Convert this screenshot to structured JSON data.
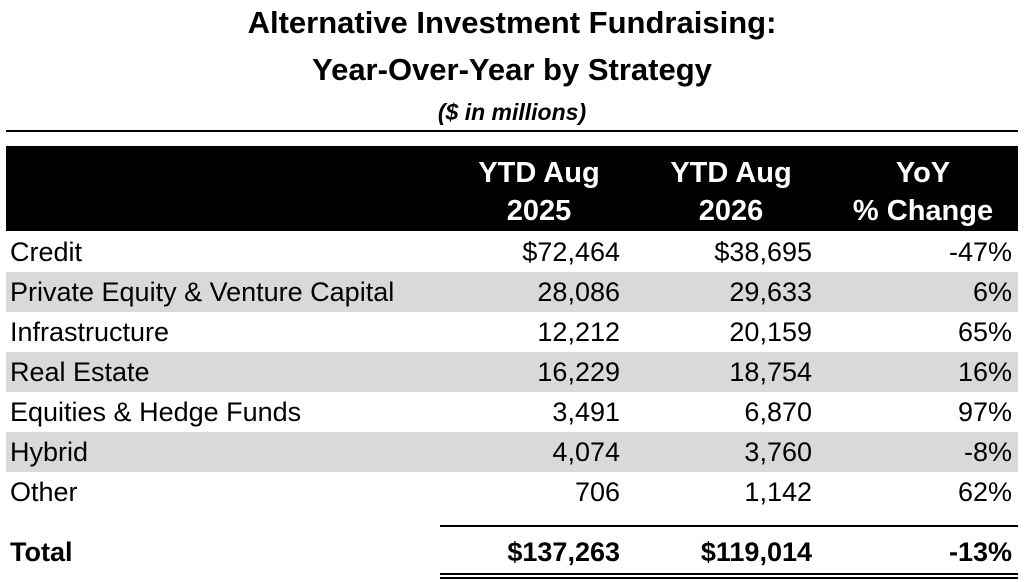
{
  "title_line1": "Alternative Investment Fundraising:",
  "title_line2": "Year-Over-Year by Strategy",
  "subtitle": "($ in millions)",
  "chart_data": {
    "type": "table",
    "title": "Alternative Investment Fundraising: Year-Over-Year by Strategy",
    "subtitle": "($ in millions)",
    "columns": [
      {
        "line1": "",
        "line2": ""
      },
      {
        "line1": "YTD Aug",
        "line2": "2025"
      },
      {
        "line1": "YTD Aug",
        "line2": "2026"
      },
      {
        "line1": "YoY",
        "line2": "% Change"
      }
    ],
    "rows": [
      {
        "strategy": "Credit",
        "ytd_2025": "$72,464",
        "ytd_2026": "$38,695",
        "yoy": "-47%"
      },
      {
        "strategy": "Private Equity & Venture Capital",
        "ytd_2025": "28,086",
        "ytd_2026": "29,633",
        "yoy": "6%"
      },
      {
        "strategy": "Infrastructure",
        "ytd_2025": "12,212",
        "ytd_2026": "20,159",
        "yoy": "65%"
      },
      {
        "strategy": "Real Estate",
        "ytd_2025": "16,229",
        "ytd_2026": "18,754",
        "yoy": "16%"
      },
      {
        "strategy": "Equities & Hedge Funds",
        "ytd_2025": "3,491",
        "ytd_2026": "6,870",
        "yoy": "97%"
      },
      {
        "strategy": "Hybrid",
        "ytd_2025": "4,074",
        "ytd_2026": "3,760",
        "yoy": "-8%"
      },
      {
        "strategy": "Other",
        "ytd_2025": "706",
        "ytd_2026": "1,142",
        "yoy": "62%"
      }
    ],
    "total": {
      "strategy": "Total",
      "ytd_2025": "$137,263",
      "ytd_2026": "$119,014",
      "yoy": "-13%"
    },
    "shaded_rows": [
      1,
      3,
      5
    ],
    "colors": {
      "header_bg": "#000000",
      "header_text": "#ffffff",
      "shade": "#d9d9d9"
    }
  }
}
